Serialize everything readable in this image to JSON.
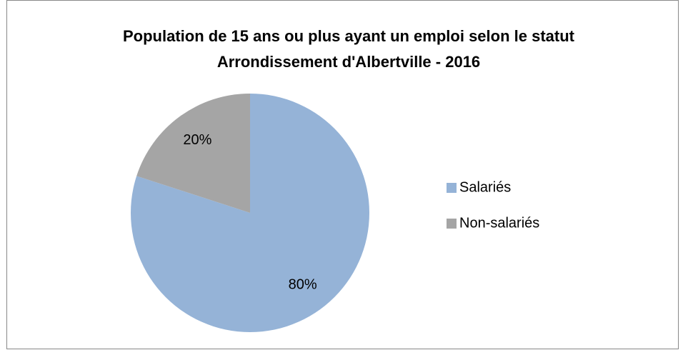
{
  "chart_data": {
    "type": "pie",
    "title": [
      "Population de 15 ans ou plus ayant un emploi selon le statut",
      "Arrondissement d'Albertville - 2016"
    ],
    "categories": [
      "Salariés",
      "Non-salariés"
    ],
    "values": [
      80,
      20
    ],
    "value_labels": [
      "80%",
      "20%"
    ],
    "colors": [
      "#95b3d7",
      "#a5a5a5"
    ],
    "legend": "right"
  }
}
